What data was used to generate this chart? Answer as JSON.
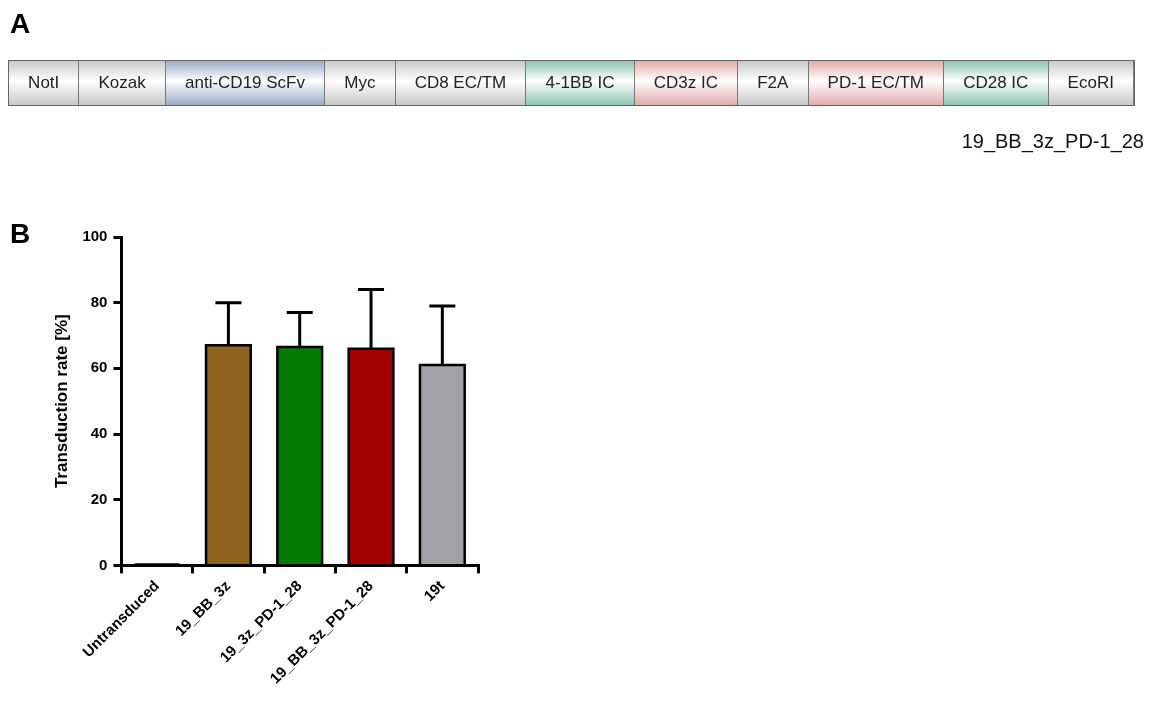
{
  "chart_data": [
    {
      "type": "other",
      "title": "A",
      "categories": [
        "NotI",
        "Kozak",
        "anti-CD19 ScFv",
        "Myc",
        "CD8 EC/TM",
        "4-1BB IC",
        "CD3z IC",
        "F2A",
        "PD-1 EC/TM",
        "CD28 IC",
        "EcoRI"
      ],
      "colors": [
        "#c8c8c8",
        "#c8c8c8",
        "#9aabc6",
        "#c8c8c8",
        "#c8c8c8",
        "#8ec5b2",
        "#e2aaaa",
        "#c8c8c8",
        "#e2aaaa",
        "#8ec5b2",
        "#c8c8c8"
      ],
      "annotations": [
        "19_BB_3z_PD-1_28"
      ]
    },
    {
      "type": "bar",
      "title": "B",
      "ylabel": "Transduction rate [%]",
      "categories": [
        "Untransduced",
        "19_BB_3z",
        "19_3z_PD-1_28",
        "19_BB_3z_PD-1_28",
        "19t"
      ],
      "values": [
        0.3,
        67,
        66.5,
        66,
        61
      ],
      "errors": [
        null,
        13,
        10.5,
        18,
        18
      ],
      "colors": [
        "#ffffff",
        "#8f6220",
        "#037c03",
        "#a00000",
        "#a2a2a6"
      ],
      "ylim": [
        0,
        100
      ],
      "yticks": [
        0,
        20,
        40,
        60,
        80,
        100
      ],
      "grid": false,
      "legend": false
    }
  ]
}
